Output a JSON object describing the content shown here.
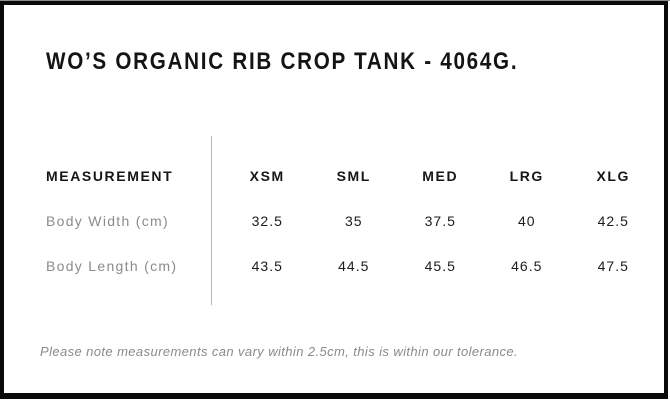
{
  "header": {
    "title": "WO’S ORGANIC RIB CROP TANK - 4064G."
  },
  "size_chart": {
    "measurement_header": "MEASUREMENT",
    "size_headers": [
      "XSM",
      "SML",
      "MED",
      "LRG",
      "XLG"
    ],
    "rows": [
      {
        "label": "Body Width (cm)",
        "values": [
          "32.5",
          "35",
          "37.5",
          "40",
          "42.5"
        ]
      },
      {
        "label": "Body Length (cm)",
        "values": [
          "43.5",
          "44.5",
          "45.5",
          "46.5",
          "47.5"
        ]
      }
    ]
  },
  "footer": {
    "note": "Please note measurements can vary within 2.5cm, this is within our tolerance."
  },
  "colors": {
    "background": "#ffffff",
    "frame_border": "#0a0a0a",
    "text_primary": "#161616",
    "text_muted": "#8b8b8b",
    "divider": "#b5b5b5"
  }
}
